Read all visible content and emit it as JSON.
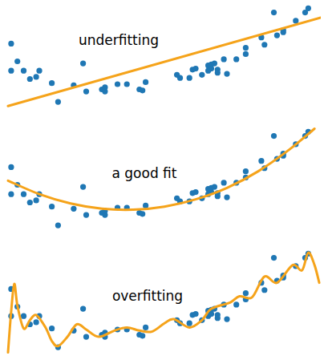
{
  "chart_data": [
    {
      "type": "scatter",
      "title": "underfitting",
      "xlim": [
        0,
        10
      ],
      "ylim": [
        -0.4,
        10.4
      ],
      "tick_labels": false,
      "grid": false,
      "series": [
        {
          "type": "scatter",
          "color": "#1f77b4",
          "marker": "circle",
          "x": [
            0.1,
            0.1,
            0.3,
            0.5,
            0.7,
            0.9,
            1.0,
            1.4,
            1.6,
            2.1,
            2.4,
            2.5,
            3.0,
            3.1,
            3.1,
            3.5,
            3.8,
            4.2,
            4.3,
            4.4,
            5.4,
            5.5,
            5.8,
            5.9,
            6.0,
            6.2,
            6.4,
            6.4,
            6.5,
            6.5,
            6.6,
            6.7,
            6.7,
            6.9,
            7.0,
            7.3,
            7.6,
            7.6,
            8.1,
            8.2,
            8.5,
            8.6,
            8.8,
            8.8,
            9.2,
            9.5,
            9.6
          ],
          "values": [
            6.2,
            3.6,
            4.5,
            3.6,
            2.8,
            3.0,
            3.6,
            2.4,
            0.6,
            2.2,
            4.3,
            1.6,
            1.8,
            1.6,
            2.0,
            2.3,
            2.3,
            1.8,
            1.7,
            2.5,
            3.2,
            2.9,
            2.9,
            3.7,
            3.8,
            3.2,
            3.6,
            4.1,
            3.8,
            4.2,
            4.3,
            3.7,
            3.4,
            4.7,
            3.3,
            4.7,
            5.2,
            5.8,
            6.8,
            6.1,
            9.2,
            7.0,
            7.3,
            7.5,
            8.4,
            9.2,
            9.6
          ]
        },
        {
          "type": "line",
          "color": "#f5a31a",
          "line_style": "solid",
          "x": [
            0,
            10
          ],
          "values": [
            0.2,
            8.7
          ]
        }
      ]
    },
    {
      "type": "scatter",
      "title": "a good fit",
      "xlim": [
        0,
        10
      ],
      "ylim": [
        -0.4,
        10.4
      ],
      "tick_labels": false,
      "grid": false,
      "series": [
        {
          "type": "scatter",
          "color": "#1f77b4",
          "marker": "circle",
          "x": [
            0.1,
            0.1,
            0.3,
            0.5,
            0.7,
            0.9,
            1.0,
            1.4,
            1.6,
            2.1,
            2.4,
            2.5,
            3.0,
            3.1,
            3.1,
            3.5,
            3.8,
            4.2,
            4.3,
            4.4,
            5.4,
            5.5,
            5.8,
            5.9,
            6.0,
            6.2,
            6.4,
            6.4,
            6.5,
            6.5,
            6.6,
            6.7,
            6.7,
            6.9,
            7.0,
            7.3,
            7.6,
            7.6,
            8.1,
            8.2,
            8.5,
            8.6,
            8.8,
            8.8,
            9.2,
            9.5,
            9.6
          ],
          "values": [
            6.2,
            3.6,
            4.5,
            3.6,
            2.8,
            3.0,
            3.6,
            2.4,
            0.6,
            2.2,
            4.3,
            1.6,
            1.8,
            1.6,
            2.0,
            2.3,
            2.3,
            1.8,
            1.7,
            2.5,
            3.2,
            2.9,
            2.9,
            3.7,
            3.8,
            3.2,
            3.6,
            4.1,
            3.8,
            4.2,
            4.3,
            3.7,
            3.4,
            4.7,
            3.3,
            4.7,
            5.2,
            5.8,
            6.8,
            6.1,
            9.2,
            7.0,
            7.3,
            7.5,
            8.4,
            9.2,
            9.6
          ]
        },
        {
          "type": "line",
          "color": "#f5a31a",
          "line_style": "solid",
          "x": [
            0,
            1,
            2,
            3,
            4,
            5,
            6,
            7,
            8,
            9,
            9.8
          ],
          "values": [
            4.9,
            3.6,
            2.7,
            2.2,
            2.1,
            2.4,
            3.1,
            4.2,
            5.8,
            7.9,
            9.9
          ]
        }
      ]
    },
    {
      "type": "scatter",
      "title": "overfitting",
      "xlim": [
        0,
        10
      ],
      "ylim": [
        -0.4,
        10.4
      ],
      "tick_labels": false,
      "grid": false,
      "series": [
        {
          "type": "scatter",
          "color": "#1f77b4",
          "marker": "circle",
          "x": [
            0.1,
            0.1,
            0.3,
            0.5,
            0.7,
            0.9,
            1.0,
            1.4,
            1.6,
            2.1,
            2.4,
            2.5,
            3.0,
            3.1,
            3.1,
            3.5,
            3.8,
            4.2,
            4.3,
            4.4,
            5.4,
            5.5,
            5.8,
            5.9,
            6.0,
            6.2,
            6.4,
            6.4,
            6.5,
            6.5,
            6.6,
            6.7,
            6.7,
            6.9,
            7.0,
            7.3,
            7.6,
            7.6,
            8.1,
            8.2,
            8.5,
            8.6,
            8.8,
            8.8,
            9.2,
            9.5,
            9.6
          ],
          "values": [
            6.2,
            3.6,
            4.5,
            3.6,
            2.8,
            3.0,
            3.6,
            2.4,
            0.6,
            2.2,
            4.3,
            1.6,
            1.8,
            1.6,
            2.0,
            2.3,
            2.3,
            1.8,
            1.7,
            2.5,
            3.2,
            2.9,
            2.9,
            3.7,
            3.8,
            3.2,
            3.6,
            4.1,
            3.8,
            4.2,
            4.3,
            3.7,
            3.4,
            4.7,
            3.3,
            4.7,
            5.2,
            5.8,
            6.8,
            6.1,
            9.2,
            7.0,
            7.3,
            7.5,
            8.4,
            9.2,
            9.6
          ]
        },
        {
          "type": "line",
          "color": "#f5a31a",
          "line_style": "solid",
          "x": [
            0.0,
            0.1,
            0.2,
            0.3,
            0.5,
            0.7,
            0.9,
            1.2,
            1.4,
            1.6,
            1.9,
            2.2,
            2.5,
            2.9,
            3.4,
            3.8,
            4.2,
            4.6,
            5.0,
            5.3,
            5.8,
            6.2,
            6.5,
            7.1,
            7.4,
            7.8,
            8.2,
            8.6,
            9.1,
            9.4,
            9.6,
            9.8,
            9.95
          ],
          "values": [
            0.1,
            4.0,
            6.7,
            4.6,
            2.4,
            3.2,
            3.7,
            2.5,
            1.2,
            0.7,
            1.6,
            2.8,
            2.3,
            1.6,
            2.2,
            2.5,
            2.2,
            2.1,
            2.9,
            3.3,
            2.5,
            3.2,
            4.3,
            4.9,
            5.5,
            5.4,
            7.4,
            6.8,
            8.5,
            8.0,
            9.7,
            8.5,
            6.8
          ]
        }
      ]
    }
  ]
}
